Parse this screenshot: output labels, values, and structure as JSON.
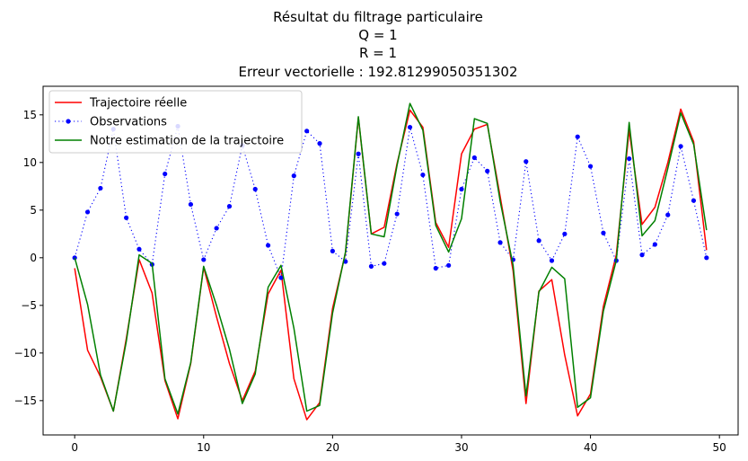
{
  "chart_data": {
    "type": "line",
    "title_lines": [
      "Résultat du filtrage particulaire",
      "Q = 1",
      "R = 1",
      "Erreur vectorielle : 192.81299050351302"
    ],
    "xlabel": "",
    "ylabel": "",
    "xlim": [
      -2.45,
      51.45
    ],
    "ylim": [
      -18.6,
      18.0
    ],
    "xticks": [
      0,
      10,
      20,
      30,
      40,
      50
    ],
    "yticks": [
      -15,
      -10,
      -5,
      0,
      5,
      10,
      15
    ],
    "grid": false,
    "legend_position": "top-left",
    "x": [
      0,
      1,
      2,
      3,
      4,
      5,
      6,
      7,
      8,
      9,
      10,
      11,
      12,
      13,
      14,
      15,
      16,
      17,
      18,
      19,
      20,
      21,
      22,
      23,
      24,
      25,
      26,
      27,
      28,
      29,
      30,
      31,
      32,
      33,
      34,
      35,
      36,
      37,
      38,
      39,
      40,
      41,
      42,
      43,
      44,
      45,
      46,
      47,
      48,
      49
    ],
    "series": [
      {
        "name": "Trajectoire réelle",
        "color": "#ff0000",
        "style": "solid",
        "marker": "none",
        "values": [
          -1.1,
          -9.7,
          -12.5,
          -16.1,
          -8.5,
          -0.2,
          -3.7,
          -12.9,
          -16.9,
          -11.1,
          -1.0,
          -6.2,
          -11.1,
          -15.0,
          -11.9,
          -3.8,
          -1.3,
          -12.7,
          -17.0,
          -15.2,
          -5.3,
          0.5,
          14.7,
          2.5,
          3.2,
          9.9,
          15.5,
          13.7,
          3.7,
          1.1,
          10.9,
          13.5,
          14.0,
          6.4,
          -1.4,
          -15.3,
          -3.5,
          -2.3,
          -10.2,
          -16.6,
          -14.3,
          -5.1,
          0.3,
          13.4,
          3.5,
          5.3,
          10.0,
          15.6,
          12.2,
          0.8
        ]
      },
      {
        "name": "Observations",
        "color": "#0000ff",
        "style": "dotted",
        "marker": "circle",
        "values": [
          0.0,
          4.8,
          7.3,
          13.5,
          4.2,
          0.9,
          -0.7,
          8.8,
          13.8,
          5.6,
          -0.2,
          3.1,
          5.4,
          11.8,
          7.2,
          1.3,
          -2.1,
          8.6,
          13.3,
          12.0,
          0.7,
          -0.4,
          10.9,
          -0.9,
          -0.6,
          4.6,
          13.7,
          8.7,
          -1.1,
          -0.8,
          7.2,
          10.5,
          9.1,
          1.6,
          -0.2,
          10.1,
          1.8,
          -0.3,
          2.5,
          12.7,
          9.6,
          2.6,
          -0.3,
          10.4,
          0.3,
          1.4,
          4.5,
          11.7,
          6.0,
          0.0
        ]
      },
      {
        "name": "Notre estimation de la trajectoire",
        "color": "#008000",
        "style": "solid",
        "marker": "none",
        "values": [
          0.0,
          -4.9,
          -12.3,
          -16.1,
          -8.8,
          0.3,
          -0.6,
          -12.7,
          -16.4,
          -11.0,
          -0.9,
          -5.0,
          -9.6,
          -15.3,
          -12.2,
          -3.1,
          -0.8,
          -7.4,
          -16.1,
          -15.5,
          -5.8,
          0.6,
          14.8,
          2.5,
          2.2,
          9.7,
          16.2,
          13.4,
          3.4,
          0.6,
          4.1,
          14.6,
          14.1,
          5.9,
          -0.8,
          -14.5,
          -3.6,
          -1.0,
          -2.2,
          -15.7,
          -14.7,
          -5.6,
          -0.3,
          14.2,
          2.3,
          3.9,
          9.4,
          15.2,
          11.9,
          2.9
        ]
      }
    ]
  }
}
